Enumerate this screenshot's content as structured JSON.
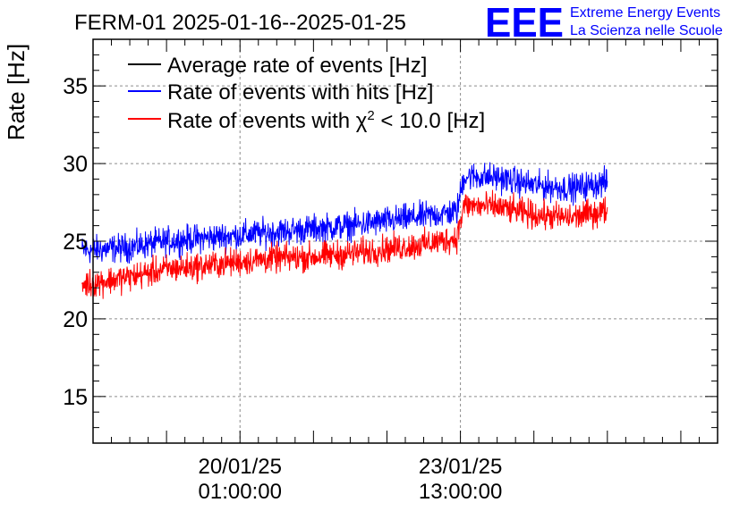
{
  "chart_data": {
    "type": "line",
    "title": "FERM-01 2025-01-16--2025-01-25",
    "ylabel": "Rate [Hz]",
    "xlabel": "",
    "ylim": [
      12,
      38
    ],
    "xlim": [
      0,
      8.5
    ],
    "x_unit": "days since the first tick of the time axis",
    "yticks": [
      15,
      20,
      25,
      30,
      35
    ],
    "xticks": [
      {
        "x": 2.0,
        "label_line1": "20/01/25",
        "label_line2": "01:00:00"
      },
      {
        "x": 5.0,
        "label_line1": "23/01/25",
        "label_line2": "13:00:00"
      }
    ],
    "grid": true,
    "legend_position": "top-left",
    "series": [
      {
        "name": "Average rate of events [Hz]",
        "color": "#000000",
        "visible": false,
        "x": [],
        "y": []
      },
      {
        "name": "Rate of events with hits [Hz]",
        "color": "#0000ff",
        "x": [
          -0.15,
          0.5,
          1.0,
          1.5,
          2.0,
          2.5,
          3.0,
          3.5,
          4.0,
          4.5,
          4.95,
          5.05,
          5.5,
          6.0,
          6.5,
          7.0
        ],
        "y": [
          24.4,
          24.6,
          25.0,
          25.2,
          25.4,
          25.6,
          25.8,
          26.0,
          26.3,
          26.6,
          26.9,
          29.2,
          29.1,
          28.6,
          28.4,
          28.8
        ],
        "noise": 0.9
      },
      {
        "name": "Rate of events with χ² < 10.0 [Hz]",
        "name_parts": {
          "before": "Rate of events with χ",
          "sup": "2",
          "after": " < 10.0 [Hz]"
        },
        "color": "#ff0000",
        "x": [
          -0.15,
          0.5,
          1.0,
          1.5,
          2.0,
          2.5,
          3.0,
          3.5,
          4.0,
          4.5,
          4.95,
          5.05,
          5.5,
          6.0,
          6.5,
          7.0
        ],
        "y": [
          22.2,
          22.7,
          23.2,
          23.4,
          23.7,
          23.9,
          24.0,
          24.2,
          24.5,
          24.8,
          25.2,
          27.3,
          27.2,
          26.7,
          26.5,
          27.0
        ],
        "noise": 0.9
      }
    ]
  },
  "logo": {
    "text": "EEE",
    "line1": "Extreme Energy Events",
    "line2": "La Scienza nelle Scuole",
    "color": "#0000ff"
  }
}
